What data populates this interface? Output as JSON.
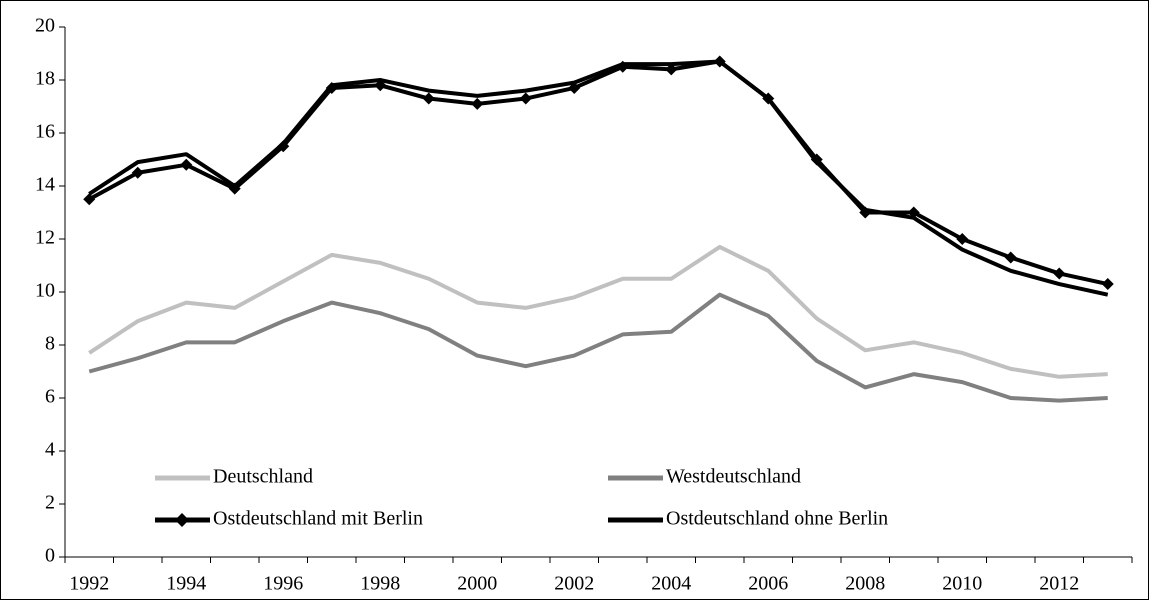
{
  "chart_data": {
    "type": "line",
    "categories": [
      "1992",
      null,
      "1994",
      null,
      "1996",
      null,
      "1998",
      null,
      "2000",
      null,
      "2002",
      null,
      "2004",
      null,
      "2006",
      null,
      "2008",
      null,
      "2010",
      null,
      "2012",
      null
    ],
    "series": [
      {
        "name": "Deutschland",
        "color": "#c0c0c0",
        "values": [
          7.7,
          8.9,
          9.6,
          9.4,
          10.4,
          11.4,
          11.1,
          10.5,
          9.6,
          9.4,
          9.8,
          10.5,
          10.5,
          11.7,
          10.8,
          9.0,
          7.8,
          8.1,
          7.7,
          7.1,
          6.8,
          6.9
        ]
      },
      {
        "name": "Westdeutschland",
        "color": "#808080",
        "values": [
          7.0,
          7.5,
          8.1,
          8.1,
          8.9,
          9.6,
          9.2,
          8.6,
          7.6,
          7.2,
          7.6,
          8.4,
          8.5,
          9.9,
          9.1,
          7.4,
          6.4,
          6.9,
          6.6,
          6.0,
          5.9,
          6.0
        ]
      },
      {
        "name": "Ostdeutschland mit Berlin",
        "color": "#000000",
        "marker": "diamond",
        "values": [
          13.5,
          14.5,
          14.8,
          13.9,
          15.5,
          17.7,
          17.8,
          17.3,
          17.1,
          17.3,
          17.7,
          18.5,
          18.4,
          18.7,
          17.3,
          15.0,
          13.0,
          13.0,
          12.0,
          11.3,
          10.7,
          10.3
        ]
      },
      {
        "name": "Ostdeutschland ohne Berlin",
        "color": "#000000",
        "values": [
          13.7,
          14.9,
          15.2,
          14.0,
          15.6,
          17.8,
          18.0,
          17.6,
          17.4,
          17.6,
          17.9,
          18.6,
          18.6,
          18.7,
          17.3,
          14.9,
          13.1,
          12.8,
          11.6,
          10.8,
          10.3,
          9.9
        ]
      }
    ],
    "ylim": [
      0,
      20
    ],
    "yticks": [
      0,
      2,
      4,
      6,
      8,
      10,
      12,
      14,
      16,
      18,
      20
    ],
    "grid": false,
    "legend": "bottom-left"
  }
}
